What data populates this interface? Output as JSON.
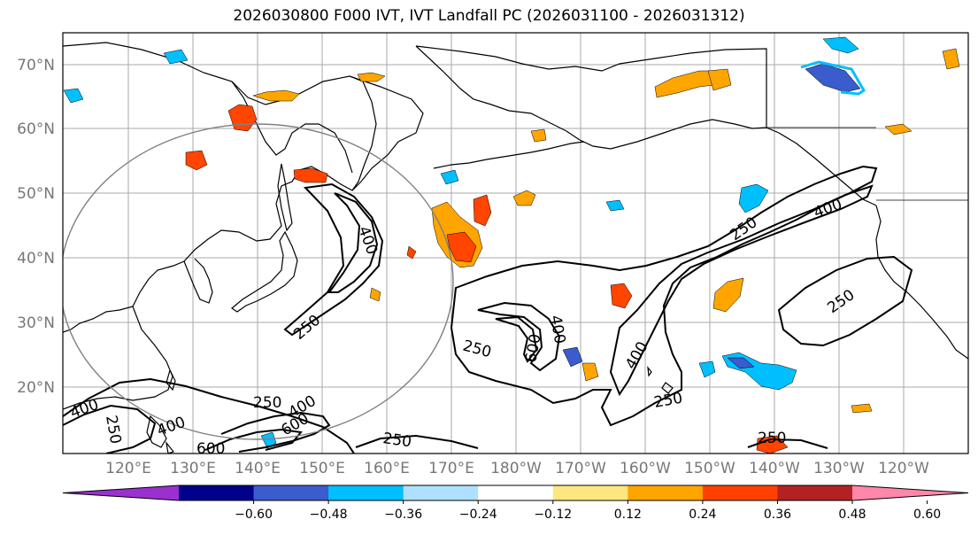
{
  "title": "2026030800 F000 IVT, IVT Landfall PC (2026031100 - 2026031312)",
  "lat_labels": [
    "70°N",
    "60°N",
    "50°N",
    "40°N",
    "30°N",
    "20°N"
  ],
  "lon_labels": [
    "120°E",
    "130°E",
    "140°E",
    "150°E",
    "160°E",
    "170°E",
    "180°W",
    "170°W",
    "160°W",
    "150°W",
    "140°W",
    "130°W",
    "120°W"
  ],
  "contour_levels": [
    "250",
    "400",
    "600"
  ],
  "colorbar": {
    "ticks": [
      "−0.60",
      "−0.48",
      "−0.36",
      "−0.24",
      "−0.12",
      "0.12",
      "0.24",
      "0.36",
      "0.48",
      "0.60"
    ],
    "colors": [
      "#9b30d0",
      "#00008b",
      "#3a5ccc",
      "#00bfff",
      "#b0e0ff",
      "#ffffff",
      "#ffe680",
      "#ffa500",
      "#ff4000",
      "#b22222",
      "#ff88aa"
    ]
  },
  "palette": {
    "orange": "#ffa500",
    "red": "#ff4500",
    "yellow": "#ffe680",
    "blue": "#00bfff",
    "royal": "#3a5ccc"
  }
}
